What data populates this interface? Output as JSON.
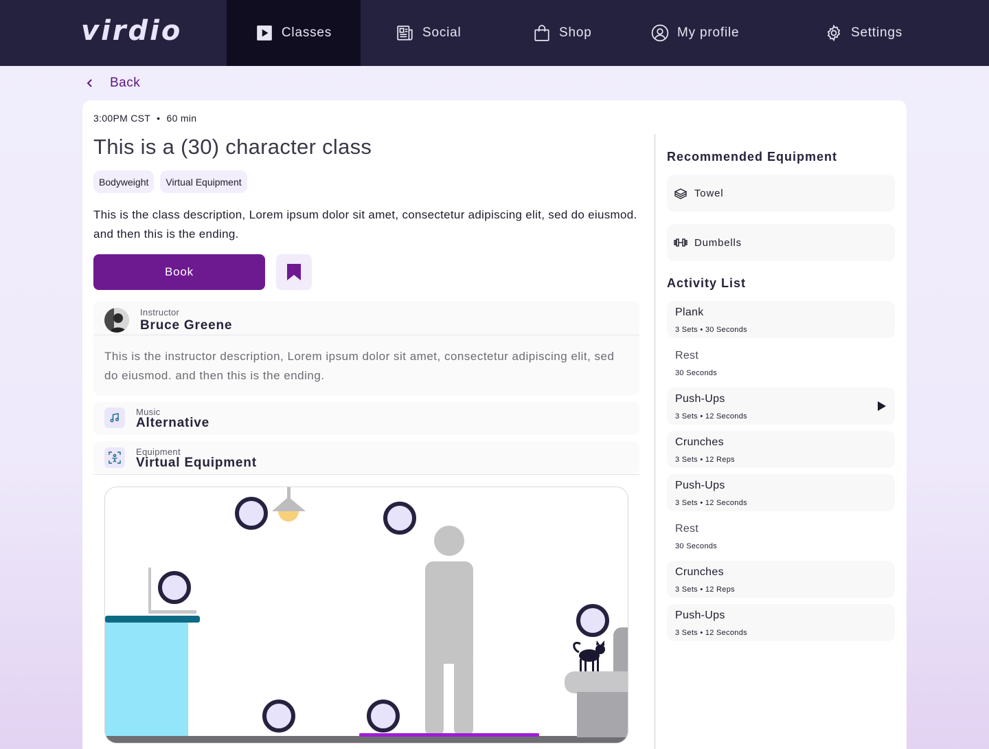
{
  "brand": {
    "logo": "virdio"
  },
  "nav": {
    "items": [
      {
        "label": "Classes",
        "icon": "play-square-icon",
        "active": true
      },
      {
        "label": "Social",
        "icon": "newspaper-icon",
        "active": false
      },
      {
        "label": "Shop",
        "icon": "shopping-bag-icon",
        "active": false
      },
      {
        "label": "My profile",
        "icon": "user-circle-icon",
        "active": false
      },
      {
        "label": "Settings",
        "icon": "gear-icon",
        "active": false
      }
    ]
  },
  "back": {
    "label": "Back",
    "icon": "chevron-left-icon"
  },
  "class": {
    "time": "3:00PM CST",
    "separator": "•",
    "duration": "60 min",
    "title": "This is a (30) character class",
    "tags": [
      "Bodyweight",
      "Virtual Equipment"
    ],
    "description": "This is the class description, Lorem ipsum dolor sit amet, consectetur adipiscing elit, sed do eiusmod. and then this is the ending.",
    "book_label": "Book",
    "bookmark_icon": "bookmark-icon"
  },
  "instructor": {
    "label": "Instructor",
    "name": "Bruce Greene",
    "description": "This is the instructor description, Lorem ipsum dolor sit amet, consectetur adipiscing elit, sed do eiusmod. and then this is the ending."
  },
  "music": {
    "label": "Music",
    "value": "Alternative",
    "icon": "music-note-icon"
  },
  "equipment": {
    "label": "Equipment",
    "value": "Virtual Equipment",
    "icon": "scan-person-icon"
  },
  "recommended_equipment": {
    "title": "Recommended Equipment",
    "items": [
      {
        "label": "Towel",
        "icon": "towel-icon"
      },
      {
        "label": "Dumbells",
        "icon": "dumbbell-icon"
      }
    ]
  },
  "activity_list": {
    "title": "Activity List",
    "items": [
      {
        "name": "Plank",
        "detail": "3 Sets • 30 Seconds",
        "shaded": true
      },
      {
        "name": "Rest",
        "detail": "30 Seconds",
        "shaded": false
      },
      {
        "name": "Push-Ups",
        "detail": "3 Sets • 12 Seconds",
        "shaded": true,
        "playing": true
      },
      {
        "name": "Crunches",
        "detail": "3 Sets • 12 Reps",
        "shaded": true
      },
      {
        "name": "Push-Ups",
        "detail": "3 Sets • 12 Seconds",
        "shaded": true
      },
      {
        "name": "Rest",
        "detail": "30 Seconds",
        "shaded": false
      },
      {
        "name": "Crunches",
        "detail": "3 Sets • 12 Reps",
        "shaded": true
      },
      {
        "name": "Push-Ups",
        "detail": "3 Sets • 12 Seconds",
        "shaded": true
      }
    ]
  },
  "colors": {
    "nav_bg": "#25223f",
    "nav_active_bg": "#0f0d1f",
    "accent": "#6d1a91",
    "counter_blue": "#93e5f9",
    "counter_top": "#0e6b86",
    "mat": "#9d1fd6",
    "hotspot_ring": "#25223f",
    "hotspot_fill": "#e6e3fb"
  }
}
